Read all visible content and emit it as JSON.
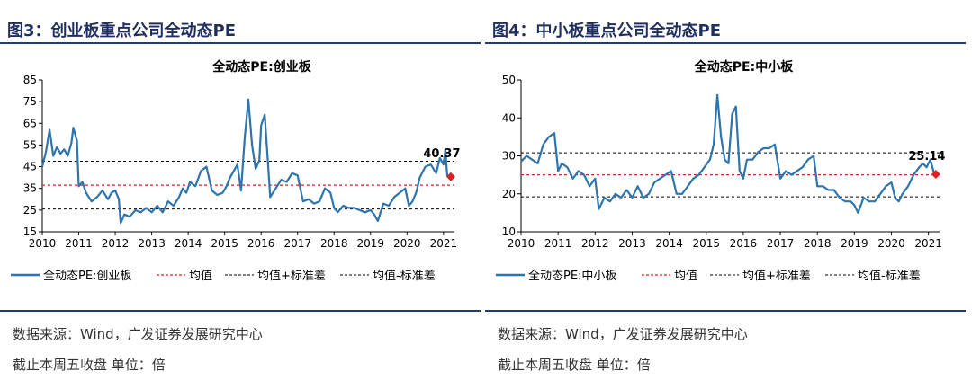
{
  "panels": [
    {
      "fig_title": "图3：创业板重点公司全动态PE",
      "source": "数据来源：Wind，广发证券发展研究中心",
      "note": "截止本周五收盘 单位：倍"
    },
    {
      "fig_title": "图4：中小板重点公司全动态PE",
      "source": "数据来源：Wind，广发证券发展研究中心",
      "note": "截止本周五收盘 单位：倍"
    }
  ],
  "colors": {
    "line": "#2e74ad",
    "mean": "#e02020",
    "band": "#000000",
    "marker": "#e02020",
    "accent": "#1f2f5e"
  },
  "chart_data": [
    {
      "type": "line",
      "title": "全动态PE:创业板",
      "ylim": [
        15,
        85
      ],
      "yticks": [
        15,
        25,
        35,
        45,
        55,
        65,
        75,
        85
      ],
      "xlim": [
        2010,
        2021.3
      ],
      "xticks": [
        "2010",
        "2011",
        "2012",
        "2013",
        "2014",
        "2015",
        "2016",
        "2017",
        "2018",
        "2019",
        "2020",
        "2021"
      ],
      "mean": 36.5,
      "mean_plus_std": 47.5,
      "mean_minus_std": 25.5,
      "last_label": "40.37",
      "last_point": [
        2021.2,
        40.37
      ],
      "legend": [
        "全动态PE:创业板",
        "均值",
        "均值+标准差",
        "均值-标准差"
      ],
      "grid": false,
      "series": [
        {
          "name": "全动态PE:创业板",
          "x": [
            2010.0,
            2010.1,
            2010.2,
            2010.3,
            2010.4,
            2010.5,
            2010.6,
            2010.7,
            2010.8,
            2010.85,
            2010.95,
            2011.0,
            2011.1,
            2011.2,
            2011.35,
            2011.5,
            2011.65,
            2011.8,
            2011.9,
            2012.0,
            2012.1,
            2012.15,
            2012.25,
            2012.4,
            2012.55,
            2012.7,
            2012.85,
            2013.0,
            2013.15,
            2013.3,
            2013.45,
            2013.6,
            2013.75,
            2013.85,
            2013.95,
            2014.05,
            2014.2,
            2014.35,
            2014.5,
            2014.65,
            2014.8,
            2014.95,
            2015.05,
            2015.15,
            2015.25,
            2015.35,
            2015.45,
            2015.55,
            2015.65,
            2015.75,
            2015.85,
            2015.95,
            2016.0,
            2016.1,
            2016.25,
            2016.4,
            2016.55,
            2016.7,
            2016.85,
            2017.0,
            2017.15,
            2017.3,
            2017.45,
            2017.6,
            2017.75,
            2017.9,
            2018.0,
            2018.1,
            2018.25,
            2018.4,
            2018.55,
            2018.7,
            2018.85,
            2019.0,
            2019.1,
            2019.2,
            2019.35,
            2019.5,
            2019.65,
            2019.8,
            2019.95,
            2020.05,
            2020.15,
            2020.25,
            2020.35,
            2020.5,
            2020.65,
            2020.8,
            2020.9,
            2021.0,
            2021.05,
            2021.1,
            2021.2
          ],
          "y": [
            45,
            52,
            62,
            50,
            54,
            51,
            53,
            50,
            56,
            63,
            57,
            36,
            38,
            33,
            29,
            31,
            34,
            30,
            33,
            34,
            30,
            19,
            23,
            22,
            25,
            24,
            26,
            24,
            27,
            24,
            29,
            27,
            31,
            35,
            33,
            38,
            36,
            43,
            45,
            34,
            32,
            33,
            36,
            40,
            43,
            46,
            34,
            58,
            76,
            55,
            44,
            48,
            64,
            69,
            31,
            35,
            39,
            38,
            42,
            41,
            29,
            30,
            28,
            29,
            35,
            33,
            26,
            24,
            27,
            26,
            26,
            25,
            24,
            25,
            23,
            20,
            28,
            27,
            31,
            33,
            35,
            27,
            29,
            33,
            40,
            45,
            46,
            42,
            49,
            46,
            53,
            41,
            40.37
          ]
        }
      ]
    },
    {
      "type": "line",
      "title": "全动态PE:中小板",
      "ylim": [
        10,
        50
      ],
      "yticks": [
        10,
        20,
        30,
        40,
        50
      ],
      "xlim": [
        2010,
        2021.3
      ],
      "xticks": [
        "2010",
        "2011",
        "2012",
        "2013",
        "2014",
        "2015",
        "2016",
        "2017",
        "2018",
        "2019",
        "2020",
        "2021"
      ],
      "mean": 25,
      "mean_plus_std": 30.8,
      "mean_minus_std": 19.2,
      "last_label": "25.14",
      "last_point": [
        2021.2,
        25.14
      ],
      "legend": [
        "全动态PE:中小板",
        "均值",
        "均值+标准差",
        "均值-标准差"
      ],
      "grid": false,
      "series": [
        {
          "name": "全动态PE:中小板",
          "x": [
            2010.0,
            2010.15,
            2010.3,
            2010.45,
            2010.6,
            2010.75,
            2010.9,
            2011.0,
            2011.1,
            2011.25,
            2011.4,
            2011.55,
            2011.7,
            2011.85,
            2012.0,
            2012.1,
            2012.25,
            2012.4,
            2012.55,
            2012.7,
            2012.85,
            2013.0,
            2013.15,
            2013.3,
            2013.45,
            2013.6,
            2013.75,
            2013.9,
            2014.05,
            2014.2,
            2014.35,
            2014.5,
            2014.65,
            2014.8,
            2014.95,
            2015.1,
            2015.2,
            2015.3,
            2015.4,
            2015.5,
            2015.6,
            2015.7,
            2015.8,
            2015.9,
            2016.0,
            2016.1,
            2016.25,
            2016.4,
            2016.55,
            2016.7,
            2016.85,
            2017.0,
            2017.15,
            2017.3,
            2017.45,
            2017.6,
            2017.75,
            2017.9,
            2018.0,
            2018.15,
            2018.3,
            2018.45,
            2018.6,
            2018.75,
            2018.9,
            2019.0,
            2019.1,
            2019.25,
            2019.4,
            2019.55,
            2019.7,
            2019.85,
            2020.0,
            2020.1,
            2020.2,
            2020.3,
            2020.45,
            2020.6,
            2020.75,
            2020.85,
            2020.95,
            2021.05,
            2021.15,
            2021.2
          ],
          "y": [
            28.5,
            30,
            29,
            28,
            33,
            35,
            36,
            26,
            28,
            27,
            24,
            26,
            25,
            22,
            24,
            16,
            19,
            18,
            20,
            19,
            21,
            19,
            22,
            19,
            20,
            23,
            24,
            25,
            26,
            20,
            20,
            22,
            24,
            25,
            27,
            29,
            33,
            46,
            35,
            29,
            28,
            41,
            43,
            26,
            24,
            29,
            29,
            31,
            32,
            32,
            33,
            24,
            26,
            25,
            26,
            27,
            29,
            30,
            22,
            22,
            21,
            21,
            19,
            18,
            18,
            17,
            15,
            19,
            18,
            18,
            20,
            22,
            23,
            19,
            18,
            20,
            22,
            25,
            27,
            28,
            27,
            29,
            25.5,
            25.14
          ]
        }
      ]
    }
  ]
}
